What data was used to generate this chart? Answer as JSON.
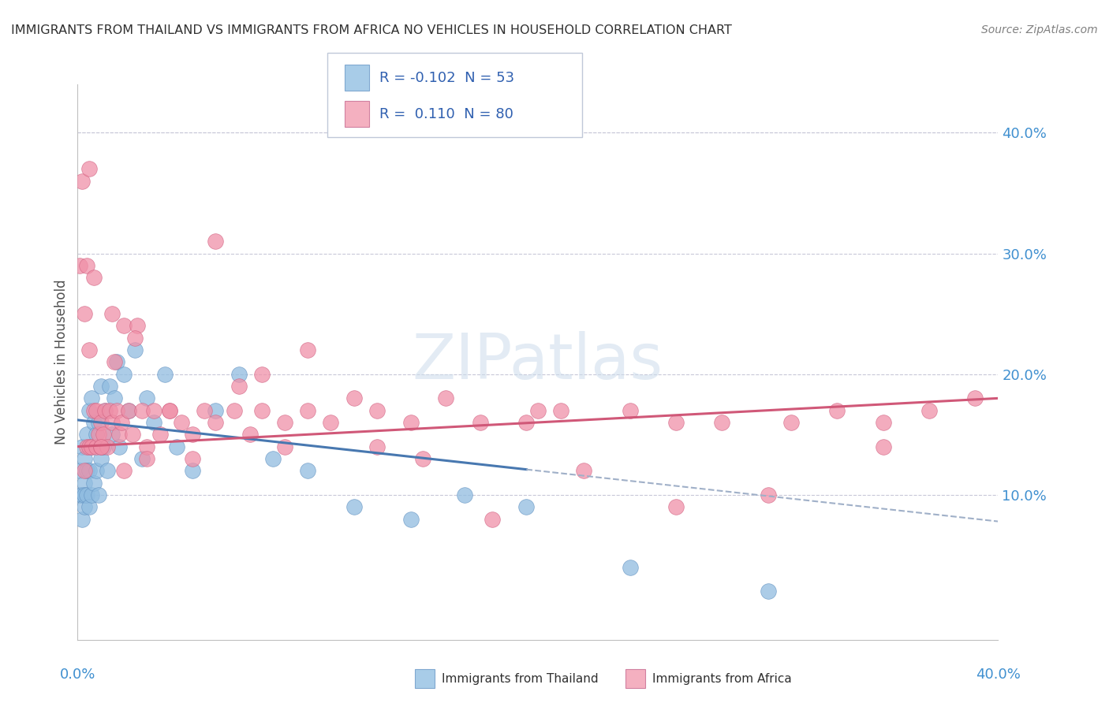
{
  "title": "IMMIGRANTS FROM THAILAND VS IMMIGRANTS FROM AFRICA NO VEHICLES IN HOUSEHOLD CORRELATION CHART",
  "source": "Source: ZipAtlas.com",
  "ylabel": "No Vehicles in Household",
  "ytick_vals": [
    0.1,
    0.2,
    0.3,
    0.4
  ],
  "ytick_labels": [
    "10.0%",
    "20.0%",
    "30.0%",
    "40.0%"
  ],
  "xrange": [
    0.0,
    0.4
  ],
  "yrange": [
    -0.02,
    0.44
  ],
  "watermark": "ZIPatlas",
  "thailand_color": "#90bce0",
  "africa_color": "#f090a8",
  "thailand_line_color": "#4878b0",
  "africa_line_color": "#d05878",
  "dashed_line_color": "#a0b0c8",
  "background_color": "#ffffff",
  "grid_color": "#c8c8d8",
  "title_color": "#303030",
  "source_color": "#808080",
  "tick_label_color": "#4090d0",
  "legend_bg": "#ffffff",
  "legend_border": "#c0c8d8",
  "legend_box1_color": "#a8cce8",
  "legend_box2_color": "#f4b0c0",
  "thailand_R": "-0.102",
  "thailand_N": "53",
  "africa_R": "0.110",
  "africa_N": "80",
  "thailand_line_x0": 0.0,
  "thailand_line_x1": 0.195,
  "thailand_line_intercept": 0.162,
  "thailand_line_slope": -0.21,
  "africa_line_x0": 0.0,
  "africa_line_x1": 0.4,
  "africa_line_intercept": 0.14,
  "africa_line_slope": 0.1,
  "dash_line_x0": 0.195,
  "dash_line_x1": 0.4,
  "thailand_x": [
    0.001,
    0.001,
    0.002,
    0.002,
    0.002,
    0.003,
    0.003,
    0.003,
    0.003,
    0.004,
    0.004,
    0.004,
    0.005,
    0.005,
    0.005,
    0.006,
    0.006,
    0.006,
    0.007,
    0.007,
    0.008,
    0.008,
    0.009,
    0.009,
    0.01,
    0.01,
    0.011,
    0.012,
    0.013,
    0.014,
    0.015,
    0.016,
    0.017,
    0.018,
    0.02,
    0.022,
    0.025,
    0.028,
    0.03,
    0.033,
    0.038,
    0.043,
    0.05,
    0.06,
    0.07,
    0.085,
    0.1,
    0.12,
    0.145,
    0.168,
    0.195,
    0.24,
    0.3
  ],
  "thailand_y": [
    0.1,
    0.12,
    0.08,
    0.14,
    0.1,
    0.11,
    0.09,
    0.13,
    0.1,
    0.12,
    0.1,
    0.15,
    0.09,
    0.12,
    0.17,
    0.1,
    0.14,
    0.18,
    0.11,
    0.16,
    0.12,
    0.15,
    0.1,
    0.16,
    0.13,
    0.19,
    0.14,
    0.17,
    0.12,
    0.19,
    0.15,
    0.18,
    0.21,
    0.14,
    0.2,
    0.17,
    0.22,
    0.13,
    0.18,
    0.16,
    0.2,
    0.14,
    0.12,
    0.17,
    0.2,
    0.13,
    0.12,
    0.09,
    0.08,
    0.1,
    0.09,
    0.04,
    0.02
  ],
  "africa_x": [
    0.001,
    0.002,
    0.003,
    0.003,
    0.004,
    0.004,
    0.005,
    0.005,
    0.006,
    0.007,
    0.007,
    0.008,
    0.008,
    0.009,
    0.01,
    0.01,
    0.011,
    0.012,
    0.013,
    0.014,
    0.015,
    0.016,
    0.017,
    0.018,
    0.019,
    0.02,
    0.022,
    0.024,
    0.026,
    0.028,
    0.03,
    0.033,
    0.036,
    0.04,
    0.045,
    0.05,
    0.055,
    0.06,
    0.068,
    0.075,
    0.08,
    0.09,
    0.1,
    0.11,
    0.12,
    0.13,
    0.145,
    0.16,
    0.175,
    0.195,
    0.21,
    0.24,
    0.26,
    0.28,
    0.31,
    0.33,
    0.35,
    0.37,
    0.39,
    0.005,
    0.01,
    0.015,
    0.02,
    0.025,
    0.03,
    0.04,
    0.06,
    0.08,
    0.1,
    0.2,
    0.3,
    0.35,
    0.05,
    0.07,
    0.09,
    0.15,
    0.13,
    0.18,
    0.22,
    0.26
  ],
  "africa_y": [
    0.29,
    0.36,
    0.12,
    0.25,
    0.14,
    0.29,
    0.14,
    0.37,
    0.14,
    0.17,
    0.28,
    0.14,
    0.17,
    0.15,
    0.14,
    0.16,
    0.15,
    0.17,
    0.14,
    0.17,
    0.16,
    0.21,
    0.17,
    0.15,
    0.16,
    0.24,
    0.17,
    0.15,
    0.24,
    0.17,
    0.14,
    0.17,
    0.15,
    0.17,
    0.16,
    0.15,
    0.17,
    0.16,
    0.17,
    0.15,
    0.17,
    0.16,
    0.17,
    0.16,
    0.18,
    0.17,
    0.16,
    0.18,
    0.16,
    0.16,
    0.17,
    0.17,
    0.16,
    0.16,
    0.16,
    0.17,
    0.16,
    0.17,
    0.18,
    0.22,
    0.14,
    0.25,
    0.12,
    0.23,
    0.13,
    0.17,
    0.31,
    0.2,
    0.22,
    0.17,
    0.1,
    0.14,
    0.13,
    0.19,
    0.14,
    0.13,
    0.14,
    0.08,
    0.12,
    0.09
  ]
}
